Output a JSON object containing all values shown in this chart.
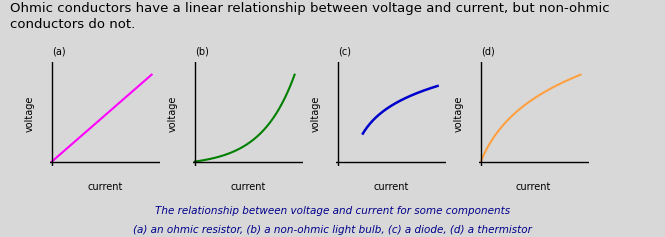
{
  "background_color": "#d8d8d8",
  "title_text": "Ohmic conductors have a linear relationship between voltage and current, but non-ohmic\nconductors do not.",
  "title_fontsize": 9.5,
  "title_color": "#000000",
  "caption_line1": "The relationship between voltage and current for some components",
  "caption_line2": "(a) an ohmic resistor, (b) a non-ohmic light bulb, (c) a diode, (d) a thermistor",
  "caption_fontsize": 7.5,
  "caption_color": "#00008B",
  "subplot_labels": [
    "(a)",
    "(b)",
    "(c)",
    "(d)"
  ],
  "subplot_label_color": "#000000",
  "curve_colors": [
    "#FF00FF",
    "#008000",
    "#0000CD",
    "#FFA040"
  ],
  "xlabel": "current",
  "ylabel": "voltage",
  "axis_label_fontsize": 7,
  "subplot_label_fontsize": 7
}
